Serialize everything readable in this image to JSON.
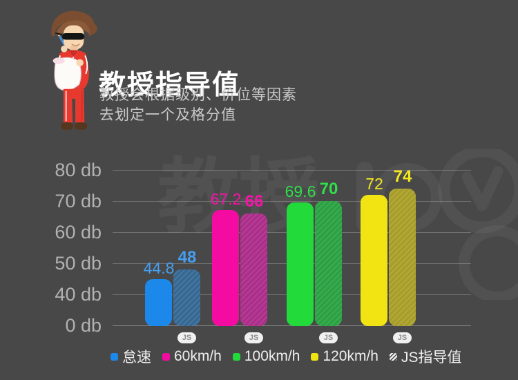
{
  "header": {
    "title": "教授指导值",
    "subtitle_lines": [
      "教授会根据级别、价位等因素",
      "去划定一个及格分值"
    ]
  },
  "watermark": {
    "text": "教授"
  },
  "chart_data": {
    "type": "bar",
    "title": "教授指导值",
    "categories": [
      "怠速",
      "60km/h",
      "100km/h",
      "120km/h"
    ],
    "series": [
      {
        "key": "solid",
        "values": [
          44.8,
          67.2,
          69.6,
          72
        ]
      },
      {
        "key": "js_guide",
        "name": "JS指导值",
        "values": [
          48,
          66,
          70,
          74
        ]
      }
    ],
    "y_ticks": [
      {
        "value": 0,
        "label": "0 db"
      },
      {
        "value": 40,
        "label": "40 db"
      },
      {
        "value": 50,
        "label": "50 db"
      },
      {
        "value": 60,
        "label": "60 db"
      },
      {
        "value": 70,
        "label": "70 db"
      },
      {
        "value": 80,
        "label": "80 db"
      }
    ],
    "grid": true,
    "legend_position": "bottom",
    "badge_label": "JS",
    "colors": {
      "solid": [
        "#1c88ea",
        "#f30ba2",
        "#23da3b",
        "#f2e413"
      ],
      "label": [
        "#459ff0",
        "#f513a8",
        "#30df4c",
        "#f3e71f"
      ],
      "hatch_base": [
        "#38688f",
        "#a93089",
        "#2f9f45",
        "#a69d2e"
      ],
      "hatch_stripe": [
        "#447aa8",
        "#ba3d98",
        "#39b04f",
        "#b5ab36"
      ]
    },
    "legend": [
      {
        "label": "怠速",
        "swatch": "#1c88ea",
        "hatched": false
      },
      {
        "label": "60km/h",
        "swatch": "#f30ba2",
        "hatched": false
      },
      {
        "label": "100km/h",
        "swatch": "#23da3b",
        "hatched": false
      },
      {
        "label": "120km/h",
        "swatch": "#f2e413",
        "hatched": false
      },
      {
        "label": "JS指导值",
        "swatch": "#f2f2f2",
        "hatched": true
      }
    ]
  }
}
